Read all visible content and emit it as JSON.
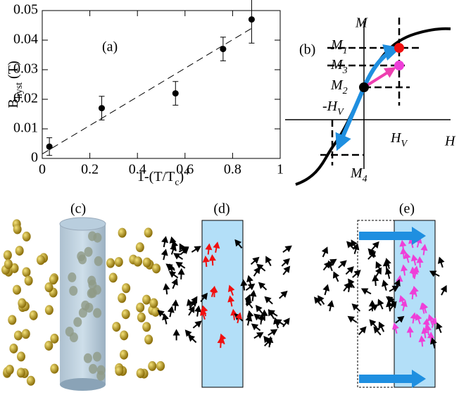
{
  "chart_data": {
    "type": "scatter",
    "annotation": "(a)",
    "x_label": [
      "1-(T/T",
      "c",
      ")",
      "4"
    ],
    "y_label": [
      "B",
      "hyst",
      "  (T)"
    ],
    "x": [
      0.03,
      0.25,
      0.56,
      0.76,
      0.88
    ],
    "series": [
      {
        "color": "#000000",
        "values": [
          0.004,
          0.017,
          0.022,
          0.037,
          0.047
        ],
        "errors": [
          0.003,
          0.004,
          0.004,
          0.004,
          0.008
        ]
      }
    ],
    "fit": {
      "x": [
        0,
        0.88
      ],
      "y": [
        0.0015,
        0.044
      ]
    },
    "xlim": [
      0,
      1
    ],
    "xticks": [
      0,
      0.2,
      0.4,
      0.6,
      0.8,
      1
    ],
    "ylim": [
      0,
      0.05
    ],
    "yticks": [
      0,
      0.01,
      0.02,
      0.03,
      0.04,
      0.05
    ]
  },
  "diagram": {
    "panel_b": {
      "label": "(b)",
      "M": "M",
      "M1": [
        "M",
        "1"
      ],
      "M3": [
        "M",
        "3"
      ],
      "M2": [
        "M",
        "2"
      ],
      "minus_HV": [
        "-H",
        "V"
      ],
      "HV": [
        "H",
        "V"
      ],
      "H": "H",
      "M4": [
        "M",
        "4"
      ]
    },
    "panel_c": {
      "label": "(c)"
    },
    "panel_d": {
      "label": "(d)"
    },
    "panel_e": {
      "label": "(e)"
    }
  }
}
